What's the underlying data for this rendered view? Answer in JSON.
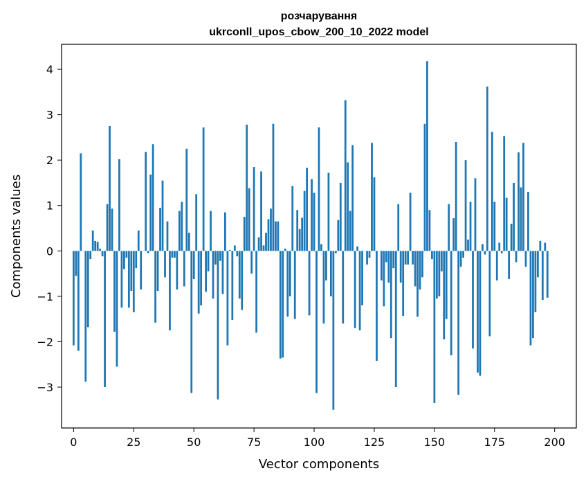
{
  "chart_data": {
    "type": "bar",
    "title": "розчарування",
    "subtitle": "ukrconll_upos_cbow_200_10_2022 model",
    "xlabel": "Vector components",
    "ylabel": "Components values",
    "xlim": [
      -5,
      209
    ],
    "ylim": [
      -3.9,
      4.55
    ],
    "xticks": [
      0,
      25,
      50,
      75,
      100,
      125,
      150,
      175,
      200
    ],
    "yticks": [
      -3,
      -2,
      -1,
      0,
      1,
      2,
      3,
      4
    ],
    "grid": false,
    "color": "#1f77b4",
    "values": [
      -2.08,
      -0.55,
      -2.2,
      2.15,
      0.0,
      -2.88,
      -1.68,
      -0.18,
      0.45,
      0.22,
      0.2,
      0.05,
      -0.12,
      -3.0,
      1.03,
      2.75,
      0.93,
      -1.78,
      -2.55,
      2.02,
      -1.25,
      -0.4,
      -0.15,
      -1.25,
      -0.88,
      -1.35,
      -0.38,
      0.45,
      -0.85,
      0.0,
      2.18,
      -0.05,
      1.68,
      2.35,
      -1.58,
      -0.88,
      0.95,
      1.55,
      -0.58,
      0.65,
      -1.75,
      -0.15,
      -0.15,
      -0.85,
      0.88,
      1.08,
      -0.78,
      2.25,
      0.4,
      -3.13,
      -0.62,
      1.25,
      -1.38,
      -1.2,
      2.72,
      -0.9,
      -0.45,
      0.88,
      -1.05,
      -0.3,
      -3.27,
      -0.22,
      -0.95,
      0.85,
      -2.08,
      0.02,
      -1.52,
      0.12,
      -0.12,
      -1.05,
      -1.3,
      0.75,
      2.78,
      1.38,
      -0.5,
      1.85,
      -1.8,
      0.3,
      1.75,
      0.12,
      0.4,
      0.7,
      0.93,
      2.8,
      0.65,
      0.65,
      -2.37,
      -2.35,
      0.05,
      -1.45,
      -1.0,
      1.43,
      -1.5,
      0.9,
      0.48,
      0.73,
      1.32,
      1.83,
      -1.42,
      1.58,
      1.28,
      -3.13,
      2.72,
      0.15,
      -1.6,
      -0.65,
      1.72,
      -1.0,
      -3.5,
      -0.05,
      0.68,
      1.5,
      -1.6,
      3.32,
      1.95,
      0.88,
      2.33,
      -1.7,
      0.1,
      -1.75,
      -1.2,
      0.0,
      -0.3,
      -0.15,
      2.38,
      1.62,
      -2.42,
      0.0,
      -0.65,
      -1.22,
      -0.25,
      -0.7,
      -1.92,
      -0.38,
      -3.0,
      1.03,
      -0.7,
      -1.43,
      -0.3,
      -0.3,
      1.28,
      -0.3,
      -0.78,
      -1.45,
      -0.85,
      -0.58,
      2.8,
      4.18,
      0.9,
      -0.18,
      -3.35,
      -1.05,
      -1.0,
      -0.45,
      -1.95,
      -1.5,
      1.03,
      -2.3,
      0.72,
      2.4,
      -3.17,
      -0.35,
      -0.15,
      2.0,
      0.25,
      1.08,
      -2.15,
      1.6,
      -2.68,
      -2.75,
      0.15,
      -0.08,
      3.62,
      -1.88,
      2.62,
      1.08,
      -0.65,
      0.18,
      -0.05,
      2.53,
      1.17,
      -0.62,
      0.6,
      1.5,
      -0.25,
      2.17,
      1.4,
      2.38,
      -0.35,
      1.3,
      -2.08,
      -1.92,
      -1.35,
      -0.58,
      0.22,
      -1.08,
      0.18,
      -1.03
    ]
  }
}
